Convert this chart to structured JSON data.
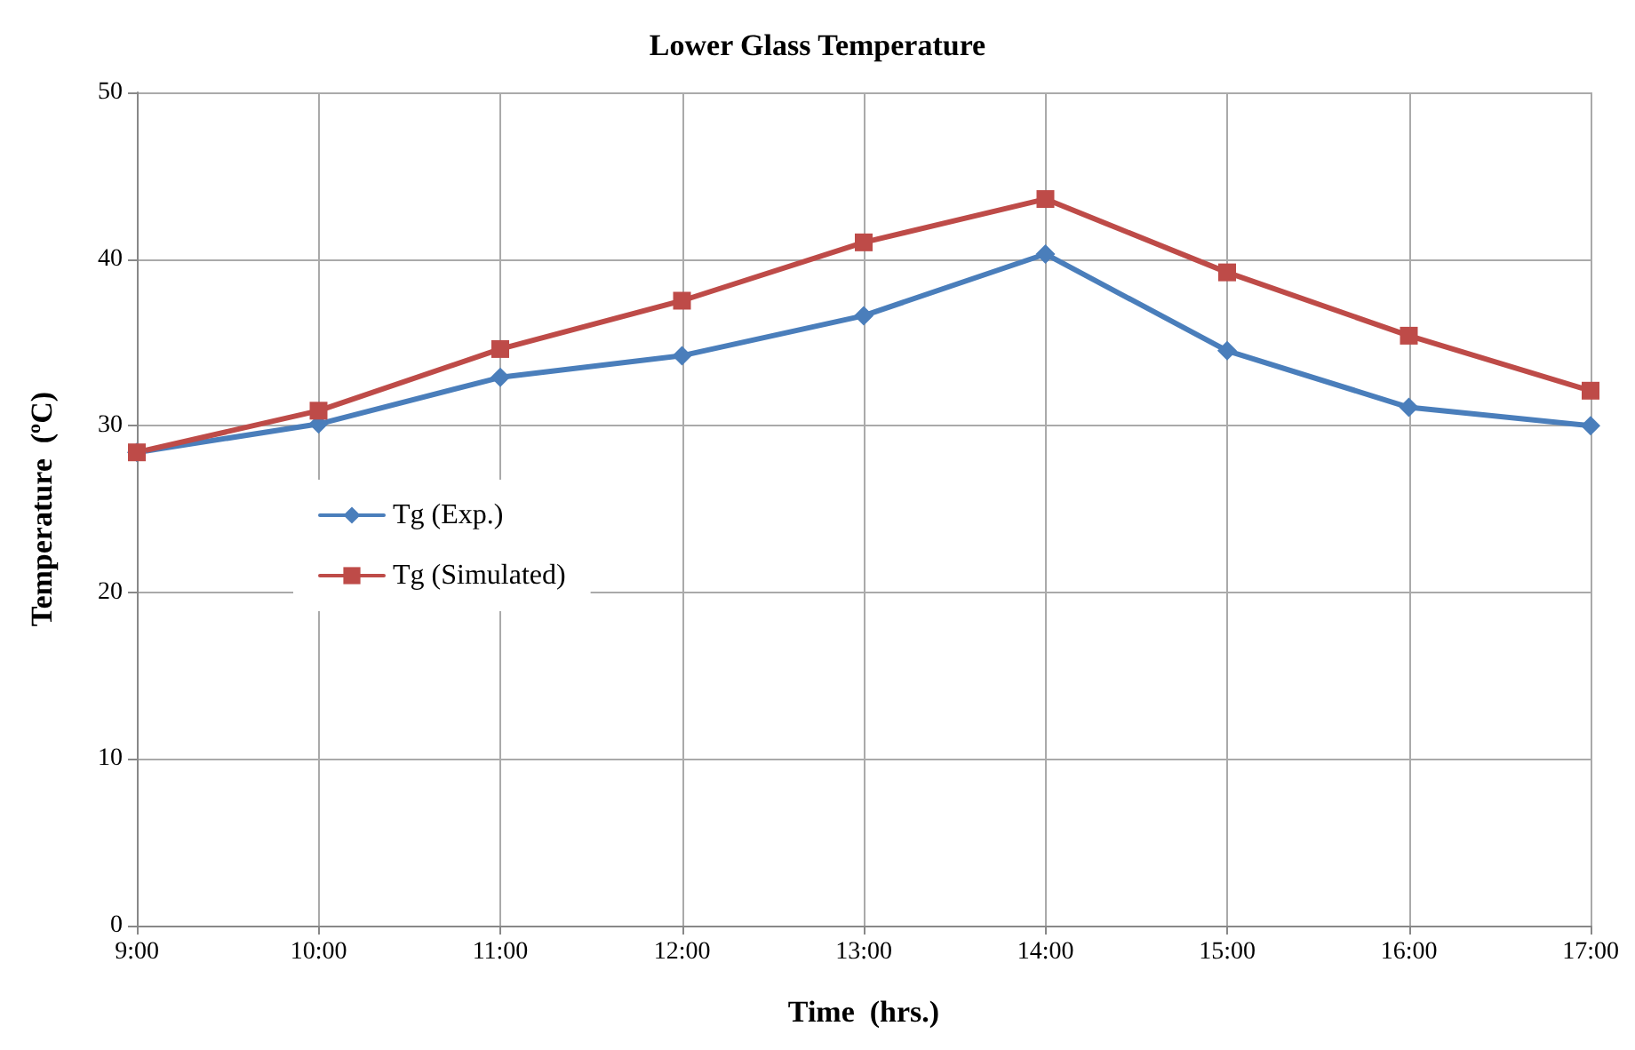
{
  "chart_data": {
    "type": "line",
    "title": "Lower Glass Temperature",
    "xlabel": "Time  (hrs.)",
    "ylabel": "Temperature  (ºC)",
    "categories": [
      "9:00",
      "10:00",
      "11:00",
      "12:00",
      "13:00",
      "14:00",
      "15:00",
      "16:00",
      "17:00"
    ],
    "series": [
      {
        "name": "Tg (Exp.)",
        "color": "#4a7ebb",
        "marker": "diamond",
        "values": [
          28.4,
          30.1,
          32.9,
          34.2,
          36.6,
          40.3,
          34.5,
          31.1,
          30.0
        ]
      },
      {
        "name": "Tg (Simulated)",
        "color": "#be4b48",
        "marker": "square",
        "values": [
          28.4,
          30.9,
          34.6,
          37.5,
          41.0,
          43.6,
          39.2,
          35.4,
          32.1
        ]
      }
    ],
    "ylim": [
      0,
      50
    ],
    "yticks": [
      0,
      10,
      20,
      30,
      40,
      50
    ],
    "grid": true,
    "legend": "center left"
  }
}
